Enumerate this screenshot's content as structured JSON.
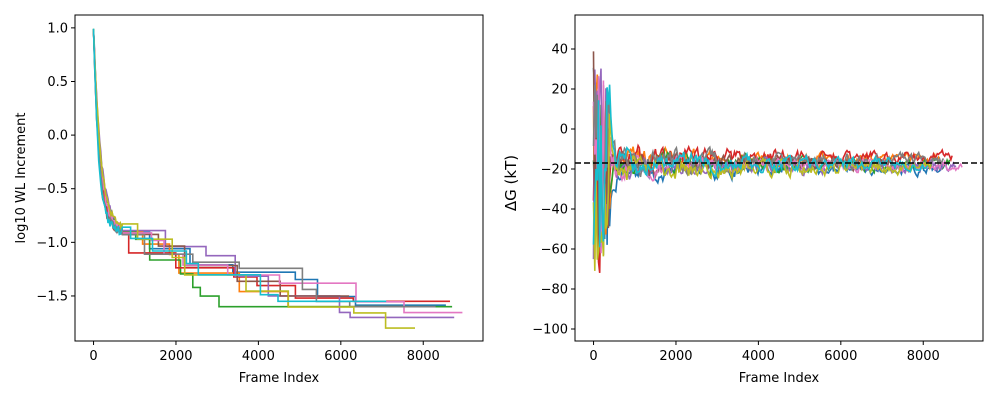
{
  "chart_data": [
    {
      "type": "line",
      "xlabel": "Frame Index",
      "ylabel": "log10 WL Increment",
      "xlim": [
        -450,
        9450
      ],
      "ylim": [
        -1.92,
        1.12
      ],
      "xticks": [
        0,
        2000,
        4000,
        6000,
        8000
      ],
      "xtick_labels": [
        "0",
        "2000",
        "4000",
        "6000",
        "8000"
      ],
      "yticks": [
        1.0,
        0.5,
        0.0,
        -0.5,
        -1.0,
        -1.5
      ],
      "ytick_labels": [
        "1.0",
        "0.5",
        "0.0",
        "−0.5",
        "−1.0",
        "−1.5"
      ],
      "grid": false,
      "legend": "none",
      "series": [
        {
          "color": "#1f77b4",
          "end": 8550,
          "floor": -1.7,
          "decay": 110
        },
        {
          "color": "#ff7f0e",
          "end": 7500,
          "floor": -1.6,
          "decay": 120
        },
        {
          "color": "#2ca02c",
          "end": 8700,
          "floor": -1.6,
          "decay": 130
        },
        {
          "color": "#d62728",
          "end": 8650,
          "floor": -1.55,
          "decay": 115
        },
        {
          "color": "#9467bd",
          "end": 8750,
          "floor": -1.7,
          "decay": 140
        },
        {
          "color": "#8c564b",
          "end": 6200,
          "floor": -1.5,
          "decay": 100
        },
        {
          "color": "#e377c2",
          "end": 8950,
          "floor": -1.7,
          "decay": 125
        },
        {
          "color": "#7f7f7f",
          "end": 8300,
          "floor": -1.6,
          "decay": 105
        },
        {
          "color": "#bcbd22",
          "end": 7800,
          "floor": -1.8,
          "decay": 135
        },
        {
          "color": "#17becf",
          "end": 7100,
          "floor": -1.55,
          "decay": 95
        }
      ]
    },
    {
      "type": "line",
      "xlabel": "Frame Index",
      "ylabel": "ΔG (kT)",
      "xlim": [
        -450,
        9450
      ],
      "ylim": [
        -106,
        57
      ],
      "xticks": [
        0,
        2000,
        4000,
        6000,
        8000
      ],
      "xtick_labels": [
        "0",
        "2000",
        "4000",
        "6000",
        "8000"
      ],
      "yticks": [
        40,
        20,
        0,
        -20,
        -40,
        -60,
        -80,
        -100
      ],
      "ytick_labels": [
        "40",
        "20",
        "0",
        "−20",
        "−40",
        "−60",
        "−80",
        "−100"
      ],
      "reference_line": {
        "y": -17,
        "style": "dashed",
        "color": "#000000"
      },
      "grid": false,
      "legend": "none",
      "series": [
        {
          "color": "#1f77b4",
          "end": 8600,
          "center": -20,
          "spread": 30
        },
        {
          "color": "#ff7f0e",
          "end": 8400,
          "center": -15,
          "spread": 28
        },
        {
          "color": "#2ca02c",
          "end": 8650,
          "center": -18,
          "spread": 32
        },
        {
          "color": "#d62728",
          "end": 8700,
          "center": -14,
          "spread": 30
        },
        {
          "color": "#9467bd",
          "end": 8800,
          "center": -19,
          "spread": 29
        },
        {
          "color": "#8c564b",
          "end": 7200,
          "center": -17,
          "spread": 27
        },
        {
          "color": "#e377c2",
          "end": 8950,
          "center": -18,
          "spread": 28
        },
        {
          "color": "#7f7f7f",
          "end": 8500,
          "center": -16,
          "spread": 34
        },
        {
          "color": "#bcbd22",
          "end": 8200,
          "center": -20,
          "spread": 31
        },
        {
          "color": "#17becf",
          "end": 8100,
          "center": -17,
          "spread": 30
        }
      ]
    }
  ]
}
